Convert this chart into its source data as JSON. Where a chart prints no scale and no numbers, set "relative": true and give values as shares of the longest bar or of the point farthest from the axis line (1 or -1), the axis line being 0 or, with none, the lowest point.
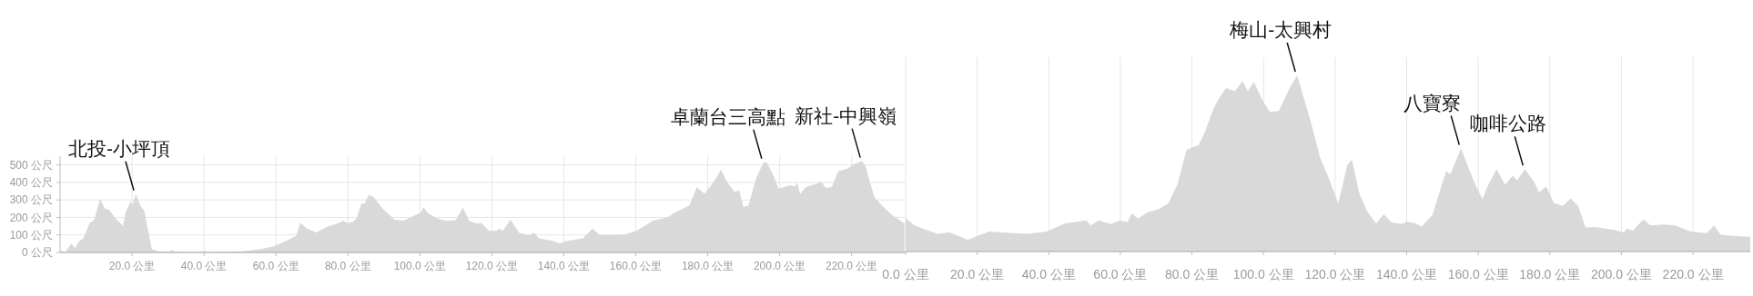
{
  "chart_data": [
    {
      "type": "area",
      "xlim": [
        0,
        235
      ],
      "ylim": [
        0,
        550
      ],
      "xticks": [
        {
          "value": 20,
          "label": "20.0 公里"
        },
        {
          "value": 40,
          "label": "40.0 公里"
        },
        {
          "value": 60,
          "label": "60.0 公里"
        },
        {
          "value": 80,
          "label": "80.0 公里"
        },
        {
          "value": 100,
          "label": "100.0 公里"
        },
        {
          "value": 120,
          "label": "120.0 公里"
        },
        {
          "value": 140,
          "label": "140.0 公里"
        },
        {
          "value": 160,
          "label": "160.0 公里"
        },
        {
          "value": 180,
          "label": "180.0 公里"
        },
        {
          "value": 200,
          "label": "200.0 公里"
        },
        {
          "value": 220,
          "label": "220.0 公里"
        }
      ],
      "yticks": [
        {
          "value": 0,
          "label": "0 公尺"
        },
        {
          "value": 100,
          "label": "100 公尺"
        },
        {
          "value": 200,
          "label": "200 公尺"
        },
        {
          "value": 300,
          "label": "300 公尺"
        },
        {
          "value": 400,
          "label": "400 公尺"
        },
        {
          "value": 500,
          "label": "500 公尺"
        }
      ],
      "grid": true,
      "series": [
        {
          "color": "#d9d9d9",
          "x": [
            0,
            1.4,
            3.1,
            4.2,
            5.2,
            6.5,
            8.2,
            9.5,
            11.1,
            12.4,
            13.7,
            15.4,
            17.5,
            18.3,
            19.6,
            20.2,
            21.0,
            22.5,
            23.4,
            24.6,
            25.5,
            27.2,
            30.5,
            31.1,
            31.8,
            39.8,
            40.3,
            40.7,
            50.8,
            55.9,
            59.2,
            62.6,
            65.6,
            66.8,
            68.5,
            71.1,
            74.4,
            77.8,
            78.6,
            79.9,
            81.6,
            82.4,
            83.7,
            84.6,
            85.8,
            87.1,
            89.6,
            92.2,
            93.0,
            95.5,
            98.1,
            100.2,
            101.0,
            102.3,
            104.8,
            107.3,
            109.9,
            112,
            113.7,
            115.8,
            117.1,
            119.2,
            121.3,
            122.1,
            123.0,
            125.2,
            127.6,
            130.1,
            131.8,
            133.1,
            136.9,
            139,
            140.3,
            145.3,
            148,
            150,
            153.8,
            157.1,
            160.5,
            164.7,
            169,
            170.6,
            174.9,
            177,
            179.1,
            181.6,
            183.7,
            185.4,
            187.5,
            188.8,
            189.9,
            191.3,
            193.4,
            195.5,
            196.4,
            198.5,
            199.7,
            202.7,
            204.4,
            204.8,
            205.7,
            207.3,
            211.6,
            212.8,
            214.5,
            216.2,
            218.7,
            220.8,
            222.9,
            223.8,
            226.3,
            228.8,
            231.4,
            234.7
          ],
          "values": [
            11,
            0,
            49,
            25,
            62,
            81,
            167,
            185,
            309,
            252,
            242,
            195,
            152,
            233,
            290,
            271,
            333,
            261,
            239,
            110,
            19,
            6,
            2,
            15,
            2,
            0,
            10,
            0,
            6,
            19,
            34,
            63,
            95,
            170,
            138,
            114,
            148,
            170,
            182,
            167,
            176,
            195,
            277,
            280,
            328,
            318,
            252,
            201,
            186,
            182,
            208,
            227,
            258,
            223,
            195,
            180,
            184,
            256,
            180,
            165,
            169,
            123,
            123,
            136,
            123,
            187,
            112,
            98,
            112,
            80,
            66,
            51,
            64,
            80,
            136,
            98,
            98,
            102,
            127,
            180,
            203,
            225,
            269,
            373,
            335,
            402,
            472,
            402,
            345,
            354,
            259,
            269,
            420,
            515,
            515,
            430,
            364,
            383,
            377,
            402,
            335,
            373,
            402,
            369,
            373,
            464,
            477,
            506,
            521,
            496,
            316,
            259,
            212,
            165
          ]
        }
      ],
      "annotations": [
        {
          "text": "北投-小坪頂",
          "x": 21.0,
          "y": 333
        },
        {
          "text": "卓蘭台三高點",
          "x": 195.5,
          "y": 515
        },
        {
          "text": "新社-中興嶺",
          "x": 222.9,
          "y": 521
        }
      ]
    },
    {
      "type": "area",
      "relative": true,
      "xlim": [
        0,
        236
      ],
      "xticks": [
        {
          "value": 0,
          "label": "0.0 公里"
        },
        {
          "value": 20,
          "label": "20.0 公里"
        },
        {
          "value": 40,
          "label": "40.0 公里"
        },
        {
          "value": 60,
          "label": "60.0 公里"
        },
        {
          "value": 80,
          "label": "80.0 公里"
        },
        {
          "value": 100,
          "label": "100.0 公里"
        },
        {
          "value": 120,
          "label": "120.0 公里"
        },
        {
          "value": 140,
          "label": "140.0 公里"
        },
        {
          "value": 160,
          "label": "160.0 公里"
        },
        {
          "value": 180,
          "label": "180.0 公里"
        },
        {
          "value": 200,
          "label": "200.0 公里"
        },
        {
          "value": 220,
          "label": "220.0 公里"
        }
      ],
      "grid": "x",
      "series": [
        {
          "color": "#d9d9d9",
          "x": [
            0,
            2.5,
            6.4,
            8.9,
            12.3,
            17.4,
            23.3,
            26.7,
            34.4,
            39.4,
            44.5,
            50.5,
            51.7,
            53.9,
            57.3,
            59.8,
            62,
            63.2,
            64.9,
            67.4,
            70.8,
            73.4,
            75.9,
            78.5,
            80.2,
            81.8,
            83.5,
            86.1,
            87.8,
            89.5,
            92,
            94.1,
            95.6,
            97.3,
            99.7,
            101.8,
            104.3,
            107.3,
            109.4,
            112.4,
            113.2,
            115.8,
            118.3,
            120.9,
            123.4,
            124.7,
            126.8,
            129,
            131.5,
            133.6,
            135.8,
            138.7,
            140,
            142.5,
            144.2,
            147.2,
            151,
            152.2,
            155.2,
            157.8,
            159.4,
            161.2,
            162.4,
            165.1,
            167.5,
            169.6,
            170.9,
            173,
            175.6,
            177,
            179,
            181.1,
            183.6,
            185.8,
            187.9,
            190,
            192.5,
            198.1,
            200.6,
            201.5,
            203.2,
            206.1,
            208.2,
            211.6,
            215,
            219.3,
            223.9,
            225.9,
            227.7,
            232,
            236
          ],
          "values": [
            0.19,
            0.148,
            0.118,
            0.101,
            0.108,
            0.067,
            0.113,
            0.108,
            0.101,
            0.113,
            0.16,
            0.177,
            0.148,
            0.177,
            0.156,
            0.177,
            0.168,
            0.216,
            0.187,
            0.22,
            0.242,
            0.273,
            0.379,
            0.576,
            0.593,
            0.602,
            0.671,
            0.816,
            0.877,
            0.928,
            0.911,
            0.966,
            0.911,
            0.962,
            0.859,
            0.791,
            0.799,
            0.928,
            1.0,
            0.791,
            0.739,
            0.533,
            0.413,
            0.273,
            0.491,
            0.52,
            0.328,
            0.225,
            0.16,
            0.211,
            0.165,
            0.156,
            0.17,
            0.16,
            0.142,
            0.208,
            0.456,
            0.439,
            0.585,
            0.448,
            0.37,
            0.297,
            0.362,
            0.468,
            0.379,
            0.431,
            0.405,
            0.468,
            0.396,
            0.336,
            0.37,
            0.276,
            0.259,
            0.302,
            0.259,
            0.136,
            0.139,
            0.122,
            0.108,
            0.13,
            0.118,
            0.182,
            0.148,
            0.153,
            0.148,
            0.113,
            0.105,
            0.148,
            0.096,
            0.087,
            0.084
          ]
        }
      ],
      "annotations": [
        {
          "text": "梅山-太興村",
          "x": 109.4,
          "y": 1.0
        },
        {
          "text": "八寶寮",
          "x": 155.2,
          "y": 0.585
        },
        {
          "text": "咖啡公路",
          "x": 173,
          "y": 0.468
        }
      ]
    }
  ]
}
